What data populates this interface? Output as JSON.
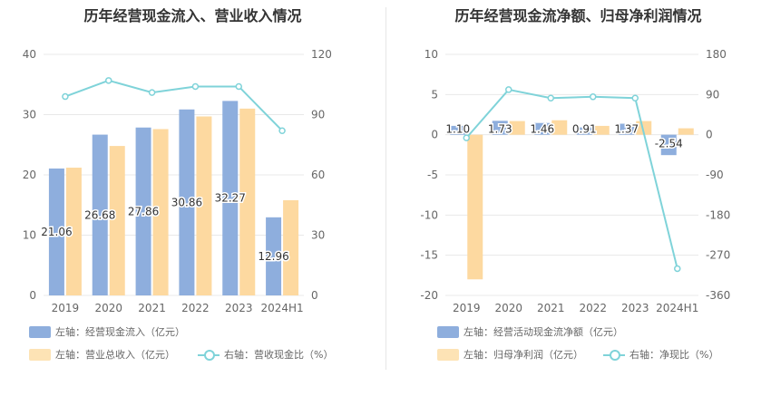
{
  "colors": {
    "bar1": "#8eaedd",
    "bar2": "#fdd9a0",
    "line": "#7fd3d9"
  },
  "chart_data": [
    {
      "type": "bar",
      "title": "历年经营现金流入、营业收入情况",
      "categories": [
        "2019",
        "2020",
        "2021",
        "2022",
        "2023",
        "2024H1"
      ],
      "y_left": {
        "ticks": [
          "0",
          "10",
          "20",
          "30",
          "40"
        ],
        "min": 0,
        "max": 40
      },
      "y_right": {
        "ticks": [
          "0",
          "30",
          "60",
          "90",
          "120"
        ],
        "min": 0,
        "max": 120
      },
      "series": [
        {
          "name": "左轴：经营现金流入（亿元）",
          "axis": "left",
          "kind": "bar",
          "values": [
            21.06,
            26.68,
            27.86,
            30.86,
            32.27,
            12.96
          ],
          "labels": [
            "21.06",
            "26.68",
            "27.86",
            "30.86",
            "32.27",
            "12.96"
          ]
        },
        {
          "name": "左轴：营业总收入（亿元）",
          "axis": "left",
          "kind": "bar",
          "values": [
            21.2,
            24.8,
            27.6,
            29.7,
            31.0,
            15.8
          ]
        },
        {
          "name": "右轴：营收现金比（%）",
          "axis": "right",
          "kind": "line",
          "values": [
            99,
            107,
            101,
            104,
            104,
            82
          ]
        }
      ],
      "legend": "bottom"
    },
    {
      "type": "bar",
      "title": "历年经营现金流净额、归母净利润情况",
      "categories": [
        "2019",
        "2020",
        "2021",
        "2022",
        "2023",
        "2024H1"
      ],
      "y_left": {
        "ticks": [
          "-20",
          "-15",
          "-10",
          "-5",
          "0",
          "5",
          "10"
        ],
        "min": -20,
        "max": 10
      },
      "y_right": {
        "ticks": [
          "-360",
          "-270",
          "-180",
          "-90",
          "0",
          "90",
          "180"
        ],
        "min": -360,
        "max": 180
      },
      "series": [
        {
          "name": "左轴：经营活动现金流净额（亿元）",
          "axis": "left",
          "kind": "bar",
          "values": [
            1.1,
            1.73,
            1.46,
            0.91,
            1.37,
            -2.54
          ],
          "labels": [
            "1.10",
            "1.73",
            "1.46",
            "0.91",
            "1.37",
            "-2.54"
          ]
        },
        {
          "name": "左轴：归母净利润（亿元）",
          "axis": "left",
          "kind": "bar",
          "values": [
            -18.0,
            1.7,
            1.8,
            1.1,
            1.7,
            0.8
          ]
        },
        {
          "name": "右轴：净现比（%）",
          "axis": "right",
          "kind": "line",
          "values": [
            -7,
            101,
            82,
            85,
            82,
            -300
          ]
        }
      ],
      "legend": "bottom"
    }
  ]
}
